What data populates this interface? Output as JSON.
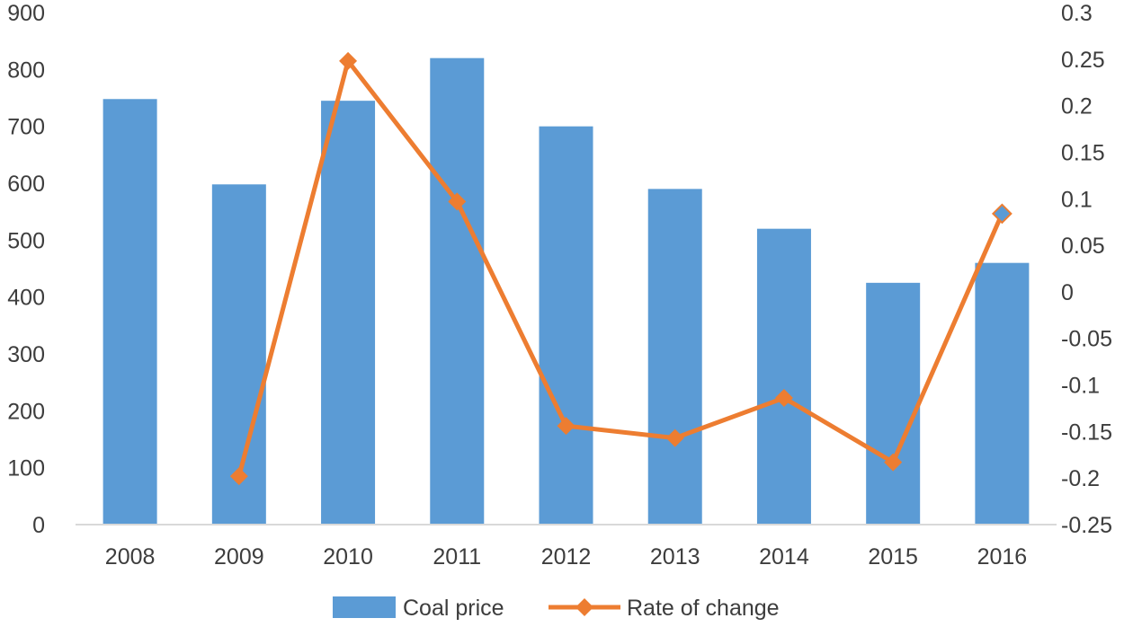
{
  "chart_data": {
    "type": "bar",
    "title": "",
    "xlabel": "",
    "ylabel": "",
    "categories": [
      "2008",
      "2009",
      "2010",
      "2011",
      "2012",
      "2013",
      "2014",
      "2015",
      "2016"
    ],
    "series": [
      {
        "name": "Coal price",
        "type": "bar",
        "axis": "left",
        "color": "#5b9bd5",
        "values": [
          748,
          598,
          745,
          820,
          700,
          590,
          520,
          425,
          460
        ]
      },
      {
        "name": "Rate of change",
        "type": "line",
        "axis": "right",
        "color": "#ed7d31",
        "marker": "diamond",
        "values": [
          null,
          -0.198,
          0.248,
          0.097,
          -0.144,
          -0.157,
          -0.114,
          -0.183,
          0.084
        ]
      }
    ],
    "y_left": {
      "lim": [
        0,
        900
      ],
      "ticks": [
        0,
        100,
        200,
        300,
        400,
        500,
        600,
        700,
        800,
        900
      ],
      "tick_labels": [
        "0",
        "100",
        "200",
        "300",
        "400",
        "500",
        "600",
        "700",
        "800",
        "900"
      ]
    },
    "y_right": {
      "lim": [
        -0.25,
        0.3
      ],
      "ticks": [
        -0.25,
        -0.2,
        -0.15,
        -0.1,
        -0.05,
        0,
        0.05,
        0.1,
        0.15,
        0.2,
        0.25,
        0.3
      ],
      "tick_labels": [
        "-0.25",
        "-0.2",
        "-0.15",
        "-0.1",
        "-0.05",
        "0",
        "0.05",
        "0.1",
        "0.15",
        "0.2",
        "0.25",
        "0.3"
      ]
    },
    "grid": false,
    "legend": {
      "position": "bottom",
      "entries": [
        "Coal price",
        "Rate of change"
      ]
    },
    "colors": {
      "axis": "#d9d9d9",
      "text": "#3d3d3d",
      "last_marker_fill": "#5b9bd5"
    }
  }
}
